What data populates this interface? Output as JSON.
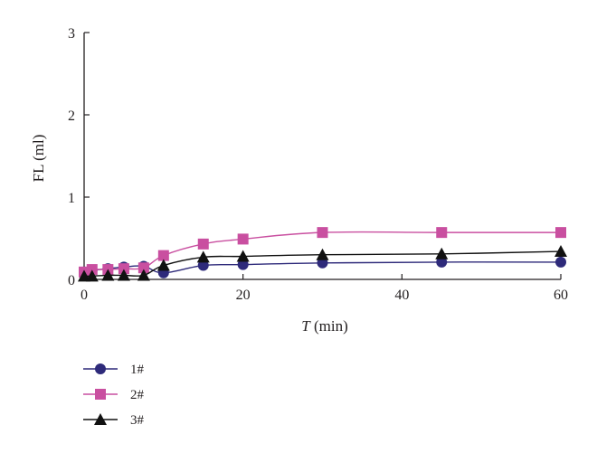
{
  "chart_data": {
    "type": "line",
    "xlabel": {
      "italic": "T",
      "rest": " (min)"
    },
    "ylabel": "FL (ml)",
    "xlim": [
      0,
      60
    ],
    "ylim": [
      0,
      3
    ],
    "xticks": [
      0,
      20,
      40,
      60
    ],
    "yticks": [
      0,
      1,
      2,
      3
    ],
    "grid": false,
    "legend_position": "bottom-left",
    "x": [
      0,
      1,
      3,
      5,
      7.5,
      10,
      15,
      20,
      30,
      45,
      60
    ],
    "series": [
      {
        "name": "1#",
        "color": "#2e2a7a",
        "marker": "circle",
        "values": [
          0.09,
          0.11,
          0.13,
          0.15,
          0.16,
          0.08,
          0.17,
          0.18,
          0.2,
          0.21,
          0.21
        ]
      },
      {
        "name": "2#",
        "color": "#c94fa0",
        "marker": "square",
        "values": [
          0.09,
          0.12,
          0.12,
          0.13,
          0.14,
          0.29,
          0.43,
          0.49,
          0.57,
          0.57,
          0.57
        ]
      },
      {
        "name": "3#",
        "color": "#111111",
        "marker": "triangle",
        "values": [
          0.04,
          0.04,
          0.05,
          0.05,
          0.05,
          0.17,
          0.27,
          0.28,
          0.3,
          0.31,
          0.34
        ]
      }
    ]
  }
}
